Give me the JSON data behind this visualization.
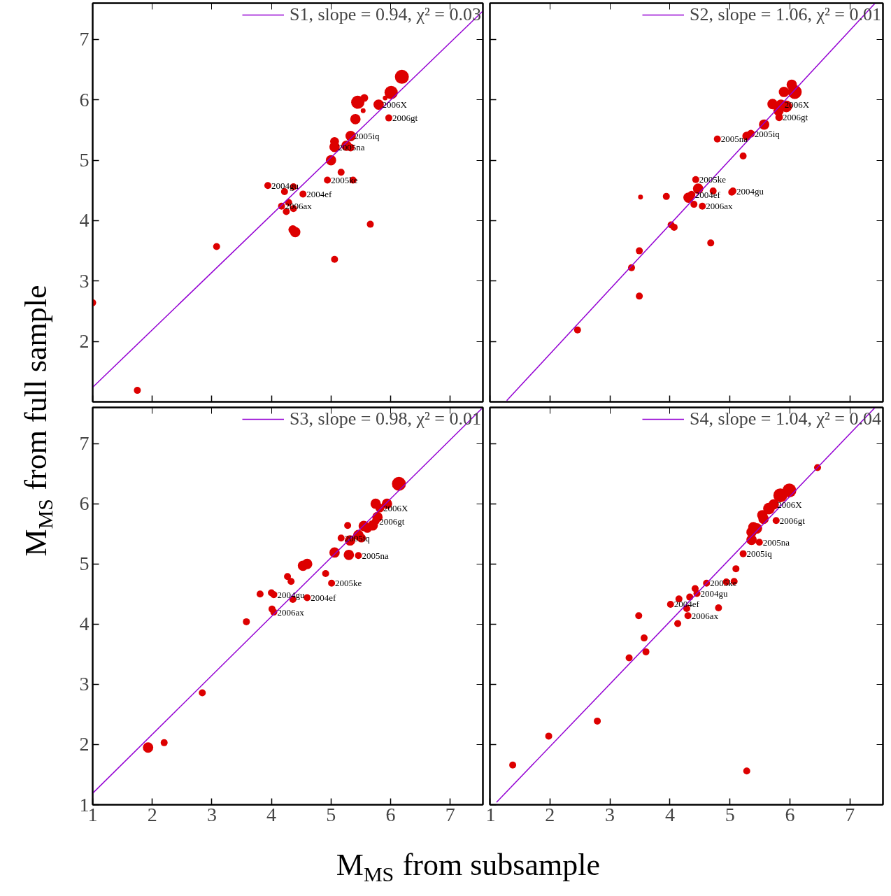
{
  "chart_data": [
    {
      "type": "bubble",
      "ylabel": "M$_{MS}$ from full sample",
      "xlim": [
        1,
        7.55
      ],
      "ylim": [
        1,
        7.6
      ],
      "xticks": [
        1,
        2,
        3,
        4,
        5,
        6,
        7
      ],
      "yticks": [
        2,
        3,
        4,
        5,
        6,
        7
      ],
      "tick_labels": "y",
      "grid": false,
      "legend": "top right",
      "series": [
        {
          "color": "#dd0000",
          "x": [
            1.0,
            1.75,
            3.08,
            3.94,
            4.22,
            4.37,
            4.53,
            4.17,
            4.29,
            4.37,
            4.25,
            4.36,
            4.4,
            4.94,
            5.17,
            5.37,
            5.0,
            5.06,
            5.06,
            5.26,
            5.33,
            5.33,
            5.41,
            5.45,
            5.56,
            5.54,
            5.8,
            5.91,
            6.01,
            5.97,
            6.19,
            5.66,
            5.06
          ],
          "values": [
            2.64,
            1.19,
            3.57,
            4.58,
            4.48,
            4.56,
            4.44,
            4.24,
            4.3,
            4.2,
            4.15,
            3.85,
            3.81,
            4.67,
            4.8,
            4.67,
            5.0,
            5.31,
            5.22,
            5.24,
            5.21,
            5.4,
            5.68,
            5.96,
            6.03,
            5.82,
            5.92,
            6.03,
            6.12,
            5.7,
            6.38,
            3.94,
            3.36
          ],
          "sizes": [
            0.25,
            0.25,
            0.25,
            0.25,
            0.25,
            0.25,
            0.25,
            0.25,
            0.25,
            0.25,
            0.25,
            0.4,
            0.55,
            0.25,
            0.25,
            0.25,
            0.55,
            0.4,
            0.55,
            0.55,
            0.3,
            0.55,
            0.55,
            0.9,
            0.3,
            0.12,
            0.55,
            0.12,
            0.9,
            0.25,
            1,
            0.25,
            0.25
          ]
        },
        {
          "type": "line",
          "name": "S1, slope = 0.94, χ² = 0.03",
          "color": "#9400d3",
          "line_style": "solid",
          "x": [
            1,
            7.55
          ],
          "values": [
            1.24,
            7.47
          ]
        }
      ],
      "annotations": [
        {
          "text": "2006X",
          "x": 5.8,
          "y": 5.92
        },
        {
          "text": "2006gt",
          "x": 5.97,
          "y": 5.7
        },
        {
          "text": "2005na",
          "x": 5.06,
          "y": 5.22
        },
        {
          "text": "2005iq",
          "x": 5.33,
          "y": 5.4
        },
        {
          "text": "2005ke",
          "x": 4.94,
          "y": 4.67
        },
        {
          "text": "2004ef",
          "x": 4.53,
          "y": 4.44
        },
        {
          "text": "2004gu",
          "x": 3.94,
          "y": 4.58
        },
        {
          "text": "2006ax",
          "x": 4.17,
          "y": 4.24
        }
      ]
    },
    {
      "type": "bubble",
      "xlim": [
        1,
        7.55
      ],
      "ylim": [
        1,
        7.6
      ],
      "xticks": [
        1,
        2,
        3,
        4,
        5,
        6,
        7
      ],
      "yticks": [
        2,
        3,
        4,
        5,
        6,
        7
      ],
      "tick_labels": false,
      "grid": false,
      "legend": "top right",
      "series": [
        {
          "color": "#dd0000",
          "x": [
            2.46,
            3.36,
            3.49,
            3.49,
            3.51,
            3.94,
            4.02,
            4.07,
            4.31,
            4.36,
            4.47,
            4.43,
            4.4,
            4.54,
            4.72,
            4.68,
            5.03,
            5.05,
            4.79,
            5.22,
            5.28,
            5.35,
            5.57,
            5.71,
            5.85,
            5.94,
            5.81,
            5.82,
            5.9,
            6.03,
            6.08
          ],
          "values": [
            2.19,
            3.22,
            3.5,
            2.75,
            4.39,
            4.4,
            3.93,
            3.89,
            4.38,
            4.43,
            4.53,
            4.68,
            4.27,
            4.24,
            4.49,
            3.63,
            4.47,
            4.49,
            5.35,
            5.07,
            5.4,
            5.44,
            5.59,
            5.93,
            5.92,
            5.89,
            5.82,
            5.71,
            6.13,
            6.25,
            6.13
          ],
          "sizes": [
            0.25,
            0.25,
            0.25,
            0.25,
            0.12,
            0.25,
            0.25,
            0.25,
            0.55,
            0.3,
            0.55,
            0.25,
            0.25,
            0.25,
            0.25,
            0.25,
            0.25,
            0.25,
            0.25,
            0.25,
            0.4,
            0.3,
            0.55,
            0.55,
            0.55,
            0.7,
            0.55,
            0.3,
            0.55,
            0.55,
            1
          ]
        },
        {
          "type": "line",
          "name": "S2, slope = 1.06, χ² = 0.01",
          "color": "#9400d3",
          "line_style": "solid",
          "x": [
            1.28,
            7.42
          ],
          "values": [
            1.02,
            7.6
          ]
        }
      ],
      "annotations": [
        {
          "text": "2006X",
          "x": 5.85,
          "y": 5.92
        },
        {
          "text": "2006gt",
          "x": 5.82,
          "y": 5.71
        },
        {
          "text": "2005na",
          "x": 4.79,
          "y": 5.35
        },
        {
          "text": "2005iq",
          "x": 5.35,
          "y": 5.44
        },
        {
          "text": "2005ke",
          "x": 4.43,
          "y": 4.68
        },
        {
          "text": "2004ef",
          "x": 4.36,
          "y": 4.43
        },
        {
          "text": "2004gu",
          "x": 5.05,
          "y": 4.49
        },
        {
          "text": "2006ax",
          "x": 4.54,
          "y": 4.24
        }
      ]
    },
    {
      "type": "bubble",
      "xlabel": "M$_{MS}$ from subsample",
      "xlim": [
        1,
        7.55
      ],
      "ylim": [
        1,
        7.6
      ],
      "xticks": [
        1,
        2,
        3,
        4,
        5,
        6,
        7
      ],
      "yticks": [
        1,
        2,
        3,
        4,
        5,
        6,
        7
      ],
      "grid": false,
      "legend": "top right",
      "series": [
        {
          "color": "#dd0000",
          "x": [
            1.93,
            2.2,
            2.84,
            3.58,
            3.81,
            4.0,
            4.04,
            4.01,
            4.04,
            4.36,
            4.27,
            4.33,
            4.53,
            4.6,
            4.6,
            4.91,
            5.01,
            5.06,
            5.3,
            5.46,
            5.17,
            5.32,
            5.28,
            5.46,
            5.51,
            5.55,
            5.61,
            5.7,
            5.75,
            5.78,
            5.75,
            5.82,
            5.94,
            6.14
          ],
          "values": [
            1.95,
            2.03,
            2.86,
            4.04,
            4.5,
            4.52,
            4.49,
            4.25,
            4.2,
            4.41,
            4.79,
            4.71,
            4.97,
            5.0,
            4.44,
            4.84,
            4.68,
            5.19,
            5.15,
            5.14,
            5.43,
            5.39,
            5.64,
            5.48,
            5.43,
            5.63,
            5.59,
            5.64,
            5.71,
            5.78,
            6.0,
            5.93,
            6.0,
            6.33
          ],
          "sizes": [
            0.55,
            0.25,
            0.25,
            0.25,
            0.25,
            0.25,
            0.25,
            0.25,
            0.25,
            0.25,
            0.25,
            0.25,
            0.55,
            0.55,
            0.25,
            0.25,
            0.25,
            0.55,
            0.55,
            0.25,
            0.25,
            0.55,
            0.25,
            0.55,
            0.4,
            0.55,
            0.4,
            0.55,
            0.3,
            0.55,
            0.55,
            0.4,
            0.55,
            1
          ]
        },
        {
          "type": "line",
          "name": "S3, slope = 0.98, χ² = 0.01",
          "color": "#9400d3",
          "line_style": "solid",
          "x": [
            1,
            7.53
          ],
          "values": [
            1.19,
            7.58
          ]
        }
      ],
      "annotations": [
        {
          "text": "2006X",
          "x": 5.82,
          "y": 5.93
        },
        {
          "text": "2006gt",
          "x": 5.75,
          "y": 5.71
        },
        {
          "text": "2005iq",
          "x": 5.17,
          "y": 5.43
        },
        {
          "text": "2005na",
          "x": 5.46,
          "y": 5.14
        },
        {
          "text": "2005ke",
          "x": 5.01,
          "y": 4.68
        },
        {
          "text": "2004ef",
          "x": 4.6,
          "y": 4.44
        },
        {
          "text": "2004gu",
          "x": 4.04,
          "y": 4.49
        },
        {
          "text": "2006ax",
          "x": 4.04,
          "y": 4.2
        }
      ]
    },
    {
      "type": "bubble",
      "xlim": [
        1,
        7.55
      ],
      "ylim": [
        1,
        7.6
      ],
      "xticks": [
        1,
        2,
        3,
        4,
        5,
        6,
        7
      ],
      "yticks": [
        1,
        2,
        3,
        4,
        5,
        6,
        7
      ],
      "tick_labels": "x",
      "grid": false,
      "legend": "top right",
      "series": [
        {
          "color": "#dd0000",
          "x": [
            1.38,
            1.98,
            2.79,
            3.32,
            3.6,
            3.57,
            3.48,
            4.01,
            4.13,
            4.3,
            4.28,
            4.15,
            4.33,
            4.42,
            4.45,
            4.61,
            4.81,
            4.94,
            5.07,
            5.1,
            5.22,
            5.28,
            5.36,
            5.36,
            5.39,
            5.45,
            5.49,
            5.54,
            5.56,
            5.65,
            5.73,
            5.77,
            5.84,
            5.99,
            6.46
          ],
          "values": [
            1.66,
            2.14,
            2.39,
            3.44,
            3.54,
            3.77,
            4.14,
            4.33,
            4.01,
            4.14,
            4.26,
            4.42,
            4.45,
            4.59,
            4.51,
            4.68,
            4.27,
            4.7,
            4.71,
            4.92,
            5.17,
            1.56,
            5.4,
            5.53,
            5.61,
            5.59,
            5.36,
            5.81,
            5.75,
            5.92,
            5.99,
            5.72,
            6.14,
            6.22,
            6.6
          ],
          "sizes": [
            0.25,
            0.25,
            0.25,
            0.25,
            0.25,
            0.25,
            0.25,
            0.25,
            0.25,
            0.25,
            0.25,
            0.25,
            0.25,
            0.25,
            0.25,
            0.25,
            0.25,
            0.25,
            0.25,
            0.25,
            0.25,
            0.25,
            0.55,
            0.55,
            0.55,
            0.55,
            0.25,
            0.55,
            0.55,
            0.7,
            0.55,
            0.25,
            1,
            1,
            0.25
          ]
        },
        {
          "type": "line",
          "name": "S4, slope = 1.04, χ² = 0.04",
          "color": "#9400d3",
          "line_style": "solid",
          "x": [
            1.11,
            7.42
          ],
          "values": [
            1.04,
            7.6
          ]
        }
      ],
      "annotations": [
        {
          "text": "2006X",
          "x": 5.73,
          "y": 5.99
        },
        {
          "text": "2006gt",
          "x": 5.77,
          "y": 5.72
        },
        {
          "text": "2005iq",
          "x": 5.22,
          "y": 5.17
        },
        {
          "text": "2005na",
          "x": 5.49,
          "y": 5.36
        },
        {
          "text": "2005ke",
          "x": 4.61,
          "y": 4.68
        },
        {
          "text": "2004gu",
          "x": 4.45,
          "y": 4.51
        },
        {
          "text": "2004ef",
          "x": 4.01,
          "y": 4.33
        },
        {
          "text": "2006ax",
          "x": 4.3,
          "y": 4.14
        }
      ]
    }
  ]
}
